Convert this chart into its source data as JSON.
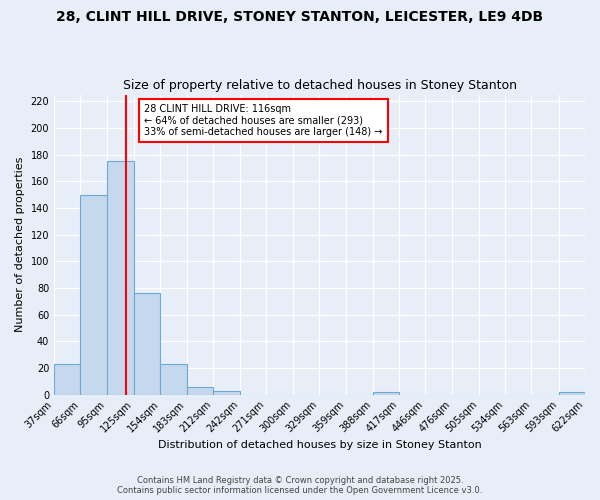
{
  "title1": "28, CLINT HILL DRIVE, STONEY STANTON, LEICESTER, LE9 4DB",
  "title2": "Size of property relative to detached houses in Stoney Stanton",
  "xlabel": "Distribution of detached houses by size in Stoney Stanton",
  "ylabel": "Number of detached properties",
  "bin_edges": [
    37,
    66,
    95,
    125,
    154,
    183,
    212,
    242,
    271,
    300,
    329,
    359,
    388,
    417,
    446,
    476,
    505,
    534,
    563,
    593,
    622
  ],
  "bin_heights": [
    23,
    150,
    175,
    76,
    23,
    6,
    3,
    0,
    0,
    0,
    0,
    0,
    2,
    0,
    0,
    0,
    0,
    0,
    0,
    2
  ],
  "bar_color": "#c5d8ee",
  "bar_edge_color": "#6aaad4",
  "vline_x": 116,
  "vline_color": "red",
  "ylim": [
    0,
    225
  ],
  "yticks": [
    0,
    20,
    40,
    60,
    80,
    100,
    120,
    140,
    160,
    180,
    200,
    220
  ],
  "annotation_box_text": "28 CLINT HILL DRIVE: 116sqm\n← 64% of detached houses are smaller (293)\n33% of semi-detached houses are larger (148) →",
  "footer1": "Contains HM Land Registry data © Crown copyright and database right 2025.",
  "footer2": "Contains public sector information licensed under the Open Government Licence v3.0.",
  "bg_color": "#e8eef8",
  "plot_bg_color": "#e8eef8",
  "grid_color": "#ffffff",
  "title1_fontsize": 10,
  "title2_fontsize": 9,
  "xlabel_fontsize": 8,
  "ylabel_fontsize": 8,
  "tick_fontsize": 7,
  "annotation_fontsize": 7,
  "footer_fontsize": 6
}
